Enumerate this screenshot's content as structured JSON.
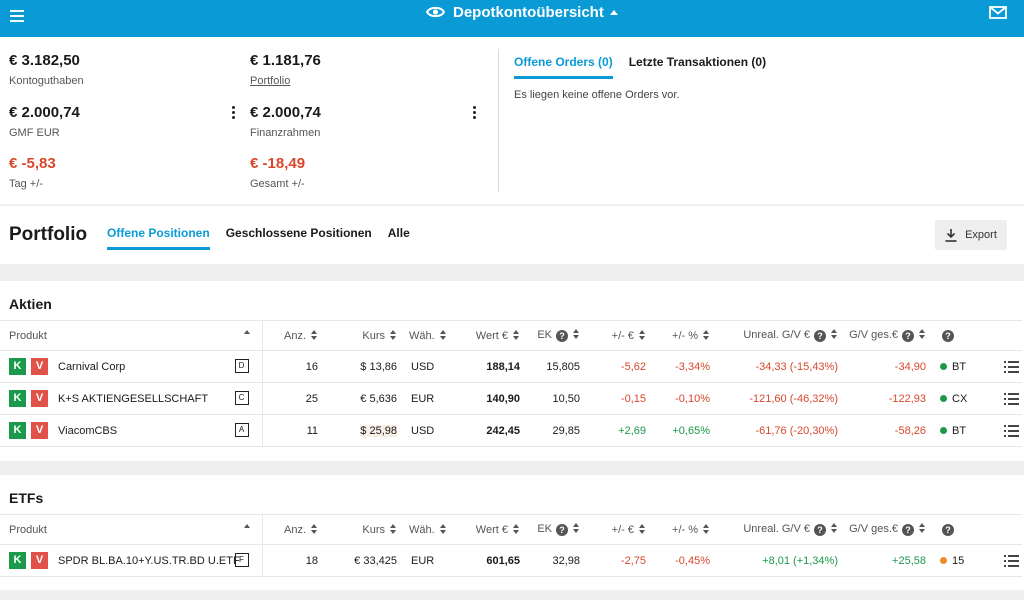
{
  "header": {
    "title": "Depotkontoübersicht",
    "menu_icon": "hamburger-icon",
    "view_icon": "eye-icon",
    "mail_icon": "mail-icon",
    "brand_color": "#0a9bd6"
  },
  "summary": {
    "balance": {
      "value": "€ 3.182,50",
      "label": "Kontoguthaben"
    },
    "portfolio": {
      "value": "€ 1.181,76",
      "label": "Portfolio"
    },
    "gmf": {
      "value": "€ 2.000,74",
      "label": "GMF EUR"
    },
    "finanzrahmen": {
      "value": "€ 2.000,74",
      "label": "Finanzrahmen"
    },
    "day": {
      "value": "€ -5,83",
      "label": "Tag +/-"
    },
    "total": {
      "value": "€ -18,49",
      "label": "Gesamt +/-"
    }
  },
  "orders": {
    "tabs": [
      "Offene Orders (0)",
      "Letzte Transaktionen (0)"
    ],
    "active_tab": 0,
    "empty_message": "Es liegen keine offene Orders vor."
  },
  "portfolio": {
    "title": "Portfolio",
    "tabs": [
      "Offene Positionen",
      "Geschlossene Positionen",
      "Alle"
    ],
    "active_tab": 0,
    "export_label": "Export"
  },
  "columns": [
    "Produkt",
    "Anz.",
    "Kurs",
    "Wäh.",
    "Wert €",
    "EK",
    "+/- €",
    "+/- %",
    "Unreal. G/V €",
    "G/V ges.€"
  ],
  "sections": [
    {
      "title": "Aktien",
      "rows": [
        {
          "k": "K",
          "v": "V",
          "name": "Carnival Corp",
          "cls": "D",
          "anz": "16",
          "kurs": "$ 13,86",
          "wah": "USD",
          "wert": "188,14",
          "ek": "15,805",
          "pm_eur": "-5,62",
          "pm_pct": "-3,34%",
          "unreal": "-34,33 (-15,43%)",
          "gv": "-34,90",
          "exch": "BT",
          "status": "green"
        },
        {
          "k": "K",
          "v": "V",
          "name": "K+S AKTIENGESELLSCHAFT",
          "cls": "C",
          "anz": "25",
          "kurs": "€ 5,636",
          "wah": "EUR",
          "wert": "140,90",
          "ek": "10,50",
          "pm_eur": "-0,15",
          "pm_pct": "-0,10%",
          "unreal": "-121,60 (-46,32%)",
          "gv": "-122,93",
          "exch": "CX",
          "status": "green"
        },
        {
          "k": "K",
          "v": "V",
          "name": "ViacomCBS",
          "cls": "A",
          "anz": "11",
          "kurs": "$ 25,98",
          "wah": "USD",
          "wert": "242,45",
          "ek": "29,85",
          "pm_eur": "+2,69",
          "pm_pct": "+0,65%",
          "unreal": "-61,76 (-20,30%)",
          "gv": "-58,26",
          "exch": "BT",
          "status": "green"
        }
      ]
    },
    {
      "title": "ETFs",
      "rows": [
        {
          "k": "K",
          "v": "V",
          "name": "SPDR BL.BA.10+Y.US.TR.BD U.ETF",
          "cls": "F",
          "anz": "18",
          "kurs": "€ 33,425",
          "wah": "EUR",
          "wert": "601,65",
          "ek": "32,98",
          "pm_eur": "-2,75",
          "pm_pct": "-0,45%",
          "unreal": "+8,01 (+1,34%)",
          "gv": "+25,58",
          "exch": "15",
          "status": "orange"
        }
      ]
    }
  ],
  "colors": {
    "negative": "#d9472b",
    "positive": "#1a9a4a",
    "status_green": "#1a9a4a",
    "status_orange": "#f0892a"
  }
}
